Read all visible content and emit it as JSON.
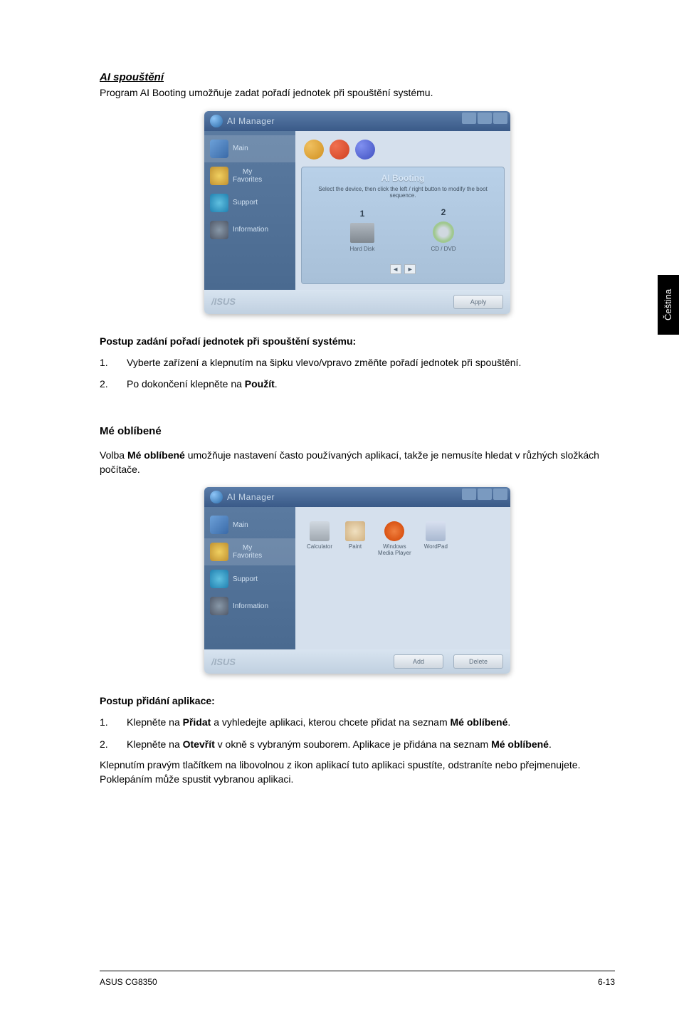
{
  "ai_booting": {
    "title": "AI spouštění",
    "intro": "Program AI Booting umožňuje zadat pořadí jednotek při spouštění systému.",
    "procedure_heading": "Postup zadání pořadí jednotek při spouštění systému:",
    "steps": [
      "Vyberte zařízení a klepnutím na šipku vlevo/vpravo změňte pořadí jednotek při spouštění.",
      "Po dokončení klepněte na <b>Použít</b>."
    ]
  },
  "favorites": {
    "heading": "Mé oblíbené",
    "intro_pre": "Volba ",
    "intro_bold": "Mé oblíbené",
    "intro_post": " umožňuje nastavení často používaných aplikací, takže je nemusíte hledat v růzhých složkách počítače.",
    "procedure_heading": "Postup přidání aplikace:",
    "steps_html": [
      "Klepněte na <b>Přidat</b> a vyhledejte aplikaci, kterou chcete přidat na seznam <b>Mé oblíbené</b>.",
      "Klepněte na <b>Otevřít</b> v okně s vybraným souborem. Aplikace je přidána na seznam <b>Mé oblíbené</b>."
    ],
    "closing": "Klepnutím pravým tlačítkem na libovolnou z ikon aplikací tuto aplikaci spustíte, odstraníte nebo přejmenujete. Poklepáním může spustit vybranou aplikaci."
  },
  "app_window_boot": {
    "title": "AI Manager",
    "sidebar": {
      "main": "Main",
      "fav": "My\nFavorites",
      "support": "Support",
      "info": "Information"
    },
    "panel_title": "AI Booting",
    "panel_desc": "Select the device, then click the left / right button to modify the boot sequence.",
    "col1": "1",
    "col2": "2",
    "dev1": "Hard Disk",
    "dev2": "CD / DVD",
    "apply": "Apply",
    "asus": "/ISUS"
  },
  "app_window_fav": {
    "title": "AI Manager",
    "sidebar": {
      "main": "Main",
      "fav": "My\nFavorites",
      "support": "Support",
      "info": "Information"
    },
    "apps": {
      "calc": "Calculator",
      "paint": "Paint",
      "wmp": "Windows\nMedia Player",
      "wordpad": "WordPad"
    },
    "add": "Add",
    "delete": "Delete",
    "asus": "/ISUS"
  },
  "side_tab": "Čeština",
  "footer": {
    "product": "ASUS CG8350",
    "page": "6-13"
  },
  "colors": {
    "titlebar_top": "#5a7ca8",
    "titlebar_bottom": "#3a5a88",
    "sidebar_top": "#5a7aa0",
    "sidebar_bottom": "#4a6a90",
    "main_bg": "#d5e0ed",
    "body_bg": "#c5d5e5"
  }
}
